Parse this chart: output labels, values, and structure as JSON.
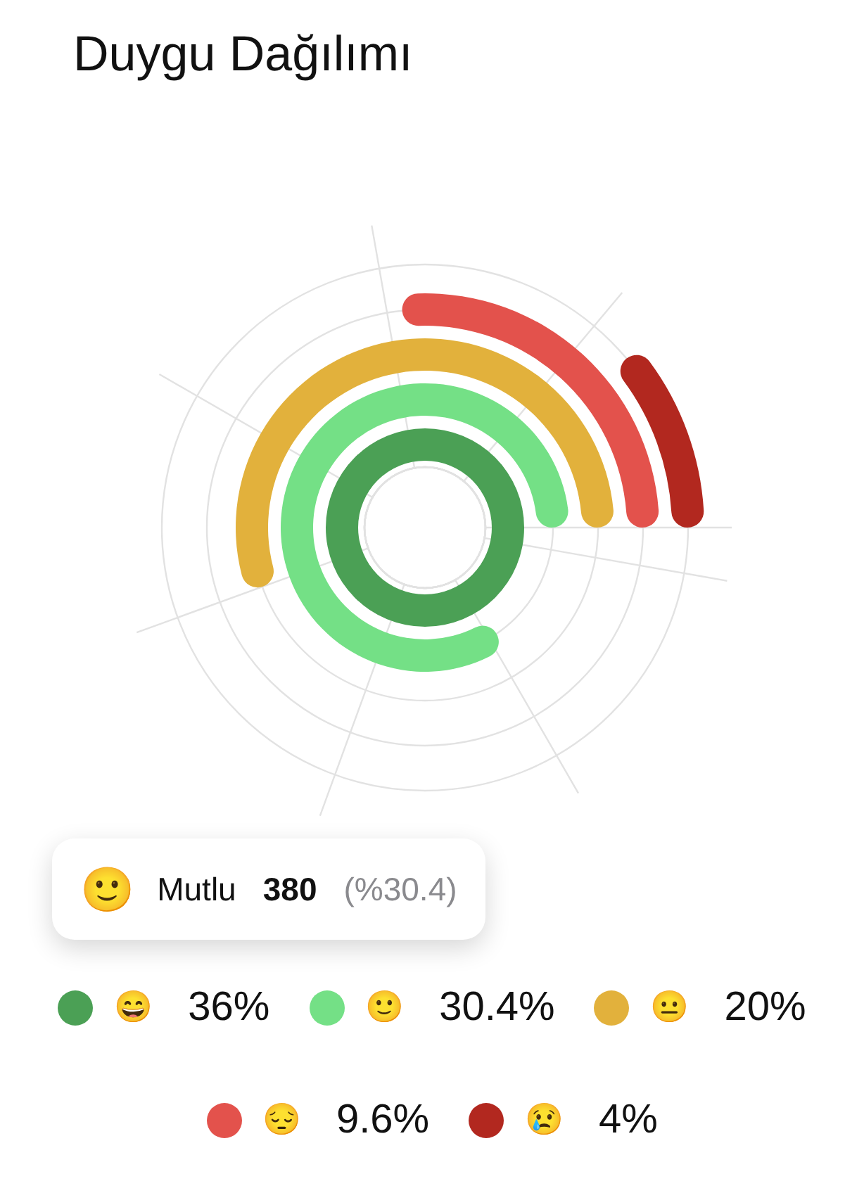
{
  "chart_data": {
    "type": "other",
    "title": "Duygu Dağılımı",
    "categories": [
      "😄",
      "🙂",
      "😐",
      "😔",
      "😢"
    ],
    "values": [
      36,
      30.4,
      20,
      9.6,
      4
    ],
    "colors": [
      "#4ba055",
      "#74e086",
      "#e2b13c",
      "#e3524c",
      "#b2281f"
    ],
    "value_labels": [
      "36%",
      "30.4%",
      "20%",
      "9.6%",
      "4%"
    ],
    "annotations": [
      "🙂 Mutlu 380 (%30.4)"
    ]
  }
}
